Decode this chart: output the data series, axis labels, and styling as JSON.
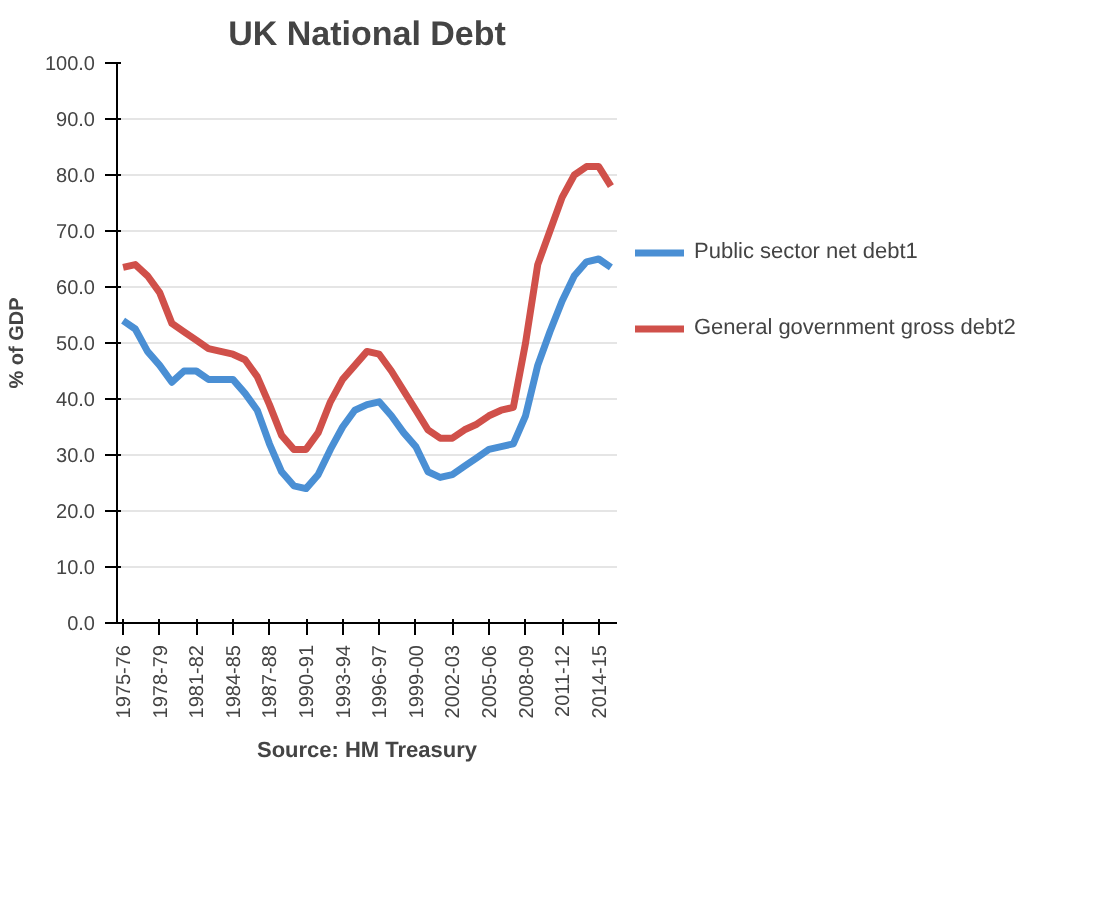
{
  "chart_data": {
    "type": "line",
    "title": "UK National Debt",
    "ylabel": "% of GDP",
    "categories": [
      "1975-76",
      null,
      null,
      "1978-79",
      null,
      null,
      "1981-82",
      null,
      null,
      "1984-85",
      null,
      null,
      "1987-88",
      null,
      null,
      "1990-91",
      null,
      null,
      "1993-94",
      null,
      null,
      "1996-97",
      null,
      null,
      "1999-00",
      null,
      null,
      "2002-03",
      null,
      null,
      "2005-06",
      null,
      null,
      "2008-09",
      null,
      null,
      "2011-12",
      null,
      null,
      "2014-15",
      null
    ],
    "series": [
      {
        "name": "Public sector net debt1",
        "color": "#4a8fd4",
        "values": [
          54,
          52.5,
          48.5,
          46,
          43,
          45,
          45,
          43.5,
          43.5,
          43.5,
          41,
          38,
          32,
          27,
          24.5,
          24,
          26.5,
          31,
          35,
          38,
          39,
          39.5,
          37,
          34,
          31.5,
          27,
          26,
          26.5,
          28,
          29.5,
          31,
          31.5,
          32,
          37,
          46,
          52,
          57.5,
          62,
          64.5,
          65,
          63.5
        ]
      },
      {
        "name": "General government gross debt2",
        "color": "#d0504a",
        "values": [
          63.5,
          64,
          62,
          59,
          53.5,
          52,
          50.5,
          49,
          48.5,
          48,
          47,
          44,
          39,
          33.5,
          31,
          31,
          34,
          39.5,
          43.5,
          46,
          48.5,
          48,
          45,
          41.5,
          38,
          34.5,
          33,
          33,
          34.5,
          35.5,
          37,
          38,
          38.5,
          50,
          64,
          70,
          76,
          80,
          81.5,
          81.5,
          78
        ]
      }
    ],
    "ylim": [
      0,
      100
    ],
    "yticks": [
      {
        "value": 0,
        "label": "0.0"
      },
      {
        "value": 10,
        "label": "10.0"
      },
      {
        "value": 20,
        "label": "20.0"
      },
      {
        "value": 30,
        "label": "30.0"
      },
      {
        "value": 40,
        "label": "40.0"
      },
      {
        "value": 50,
        "label": "50.0"
      },
      {
        "value": 60,
        "label": "60.0"
      },
      {
        "value": 70,
        "label": "70.0"
      },
      {
        "value": 80,
        "label": "80.0"
      },
      {
        "value": 90,
        "label": "90.0"
      },
      {
        "value": 100,
        "label": "100.0"
      }
    ],
    "grid": "y",
    "legend": "right",
    "marker": "none",
    "line_style": "solid",
    "annotations": [
      "Source: HM Treasury"
    ]
  }
}
